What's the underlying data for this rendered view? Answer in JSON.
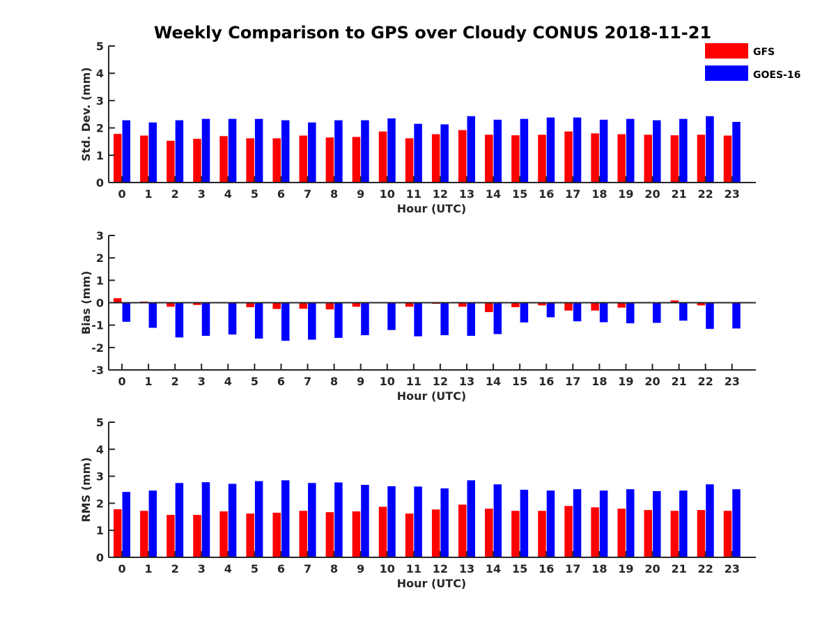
{
  "title": "Weekly Comparison to GPS over Cloudy CONUS 2018-11-21",
  "legend": [
    {
      "name": "GFS",
      "color": "#ff0000"
    },
    {
      "name": "GOES-16",
      "color": "#0000ff"
    }
  ],
  "chart_data": [
    {
      "type": "bar",
      "categories": [
        "0",
        "1",
        "2",
        "3",
        "4",
        "5",
        "6",
        "7",
        "8",
        "9",
        "10",
        "11",
        "12",
        "13",
        "14",
        "15",
        "16",
        "17",
        "18",
        "19",
        "20",
        "21",
        "22",
        "23"
      ],
      "xlabel": "Hour (UTC)",
      "ylabel": "Std. Dev. (mm)",
      "ylim": [
        0,
        5
      ],
      "yticks": [
        0,
        1,
        2,
        3,
        4,
        5
      ],
      "series": [
        {
          "name": "GFS",
          "color": "#ff0000",
          "values": [
            1.78,
            1.72,
            1.53,
            1.6,
            1.7,
            1.62,
            1.62,
            1.72,
            1.65,
            1.67,
            1.87,
            1.62,
            1.77,
            1.92,
            1.75,
            1.73,
            1.75,
            1.87,
            1.8,
            1.77,
            1.75,
            1.73,
            1.75,
            1.72
          ]
        },
        {
          "name": "GOES-16",
          "color": "#0000ff",
          "values": [
            2.28,
            2.2,
            2.28,
            2.33,
            2.33,
            2.33,
            2.28,
            2.2,
            2.28,
            2.28,
            2.35,
            2.15,
            2.13,
            2.43,
            2.3,
            2.33,
            2.38,
            2.38,
            2.3,
            2.33,
            2.28,
            2.33,
            2.43,
            2.22
          ]
        }
      ]
    },
    {
      "type": "bar",
      "categories": [
        "0",
        "1",
        "2",
        "3",
        "4",
        "5",
        "6",
        "7",
        "8",
        "9",
        "10",
        "11",
        "12",
        "13",
        "14",
        "15",
        "16",
        "17",
        "18",
        "19",
        "20",
        "21",
        "22",
        "23"
      ],
      "xlabel": "Hour (UTC)",
      "ylabel": "Bias (mm)",
      "ylim": [
        -3,
        3
      ],
      "yticks": [
        -3,
        -2,
        -1,
        0,
        1,
        2,
        3
      ],
      "zero_line": true,
      "series": [
        {
          "name": "GFS",
          "color": "#ff0000",
          "values": [
            0.2,
            0.05,
            -0.18,
            -0.1,
            -0.03,
            -0.2,
            -0.28,
            -0.27,
            -0.3,
            -0.18,
            0.02,
            -0.18,
            -0.05,
            -0.18,
            -0.42,
            -0.2,
            -0.12,
            -0.35,
            -0.35,
            -0.22,
            -0.02,
            0.1,
            -0.12,
            0.0
          ]
        },
        {
          "name": "GOES-16",
          "color": "#0000ff",
          "values": [
            -0.85,
            -1.12,
            -1.55,
            -1.48,
            -1.42,
            -1.6,
            -1.7,
            -1.65,
            -1.57,
            -1.45,
            -1.22,
            -1.5,
            -1.45,
            -1.48,
            -1.4,
            -0.88,
            -0.65,
            -0.83,
            -0.87,
            -0.92,
            -0.9,
            -0.8,
            -1.17,
            -1.15
          ]
        }
      ]
    },
    {
      "type": "bar",
      "categories": [
        "0",
        "1",
        "2",
        "3",
        "4",
        "5",
        "6",
        "7",
        "8",
        "9",
        "10",
        "11",
        "12",
        "13",
        "14",
        "15",
        "16",
        "17",
        "18",
        "19",
        "20",
        "21",
        "22",
        "23"
      ],
      "xlabel": "Hour (UTC)",
      "ylabel": "RMS (mm)",
      "ylim": [
        0,
        5
      ],
      "yticks": [
        0,
        1,
        2,
        3,
        4,
        5
      ],
      "series": [
        {
          "name": "GFS",
          "color": "#ff0000",
          "values": [
            1.78,
            1.72,
            1.57,
            1.57,
            1.7,
            1.62,
            1.65,
            1.72,
            1.67,
            1.7,
            1.87,
            1.62,
            1.77,
            1.95,
            1.8,
            1.72,
            1.72,
            1.9,
            1.85,
            1.8,
            1.75,
            1.72,
            1.75,
            1.72
          ]
        },
        {
          "name": "GOES-16",
          "color": "#0000ff",
          "values": [
            2.42,
            2.47,
            2.75,
            2.78,
            2.72,
            2.82,
            2.85,
            2.75,
            2.77,
            2.68,
            2.63,
            2.62,
            2.55,
            2.85,
            2.7,
            2.5,
            2.47,
            2.52,
            2.47,
            2.52,
            2.45,
            2.47,
            2.7,
            2.52
          ]
        }
      ]
    }
  ]
}
